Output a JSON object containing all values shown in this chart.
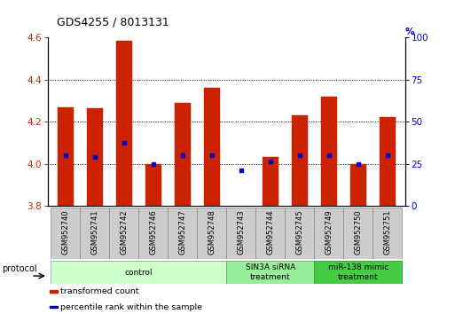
{
  "title": "GDS4255 / 8013131",
  "samples": [
    "GSM952740",
    "GSM952741",
    "GSM952742",
    "GSM952746",
    "GSM952747",
    "GSM952748",
    "GSM952743",
    "GSM952744",
    "GSM952745",
    "GSM952749",
    "GSM952750",
    "GSM952751"
  ],
  "bar_tops": [
    4.27,
    4.265,
    4.585,
    4.0,
    4.29,
    4.36,
    3.8,
    4.03,
    4.23,
    4.32,
    4.0,
    4.22
  ],
  "blue_dots": [
    4.04,
    4.03,
    4.1,
    4.0,
    4.04,
    4.04,
    3.97,
    4.01,
    4.04,
    4.04,
    4.0,
    4.04
  ],
  "bar_color": "#cc2200",
  "dot_color": "#0000cc",
  "ylim": [
    3.8,
    4.6
  ],
  "yticks_left": [
    3.8,
    4.0,
    4.2,
    4.4,
    4.6
  ],
  "yticks_right": [
    0,
    25,
    50,
    75,
    100
  ],
  "left_tick_color": "#cc2200",
  "right_tick_color": "#0000cc",
  "grid_yticks": [
    4.0,
    4.2,
    4.4
  ],
  "groups": [
    {
      "label": "control",
      "start": 0,
      "end": 5,
      "color": "#ccffcc",
      "border": "#aabb99"
    },
    {
      "label": "SIN3A siRNA\ntreatment",
      "start": 6,
      "end": 8,
      "color": "#99ee99",
      "border": "#77aa77"
    },
    {
      "label": "miR-138 mimic\ntreatment",
      "start": 9,
      "end": 11,
      "color": "#44cc44",
      "border": "#33aa33"
    }
  ],
  "protocol_label": "protocol",
  "legend_items": [
    {
      "label": "transformed count",
      "color": "#cc2200"
    },
    {
      "label": "percentile rank within the sample",
      "color": "#0000cc"
    }
  ],
  "bar_width": 0.55,
  "bar_base": 3.8
}
